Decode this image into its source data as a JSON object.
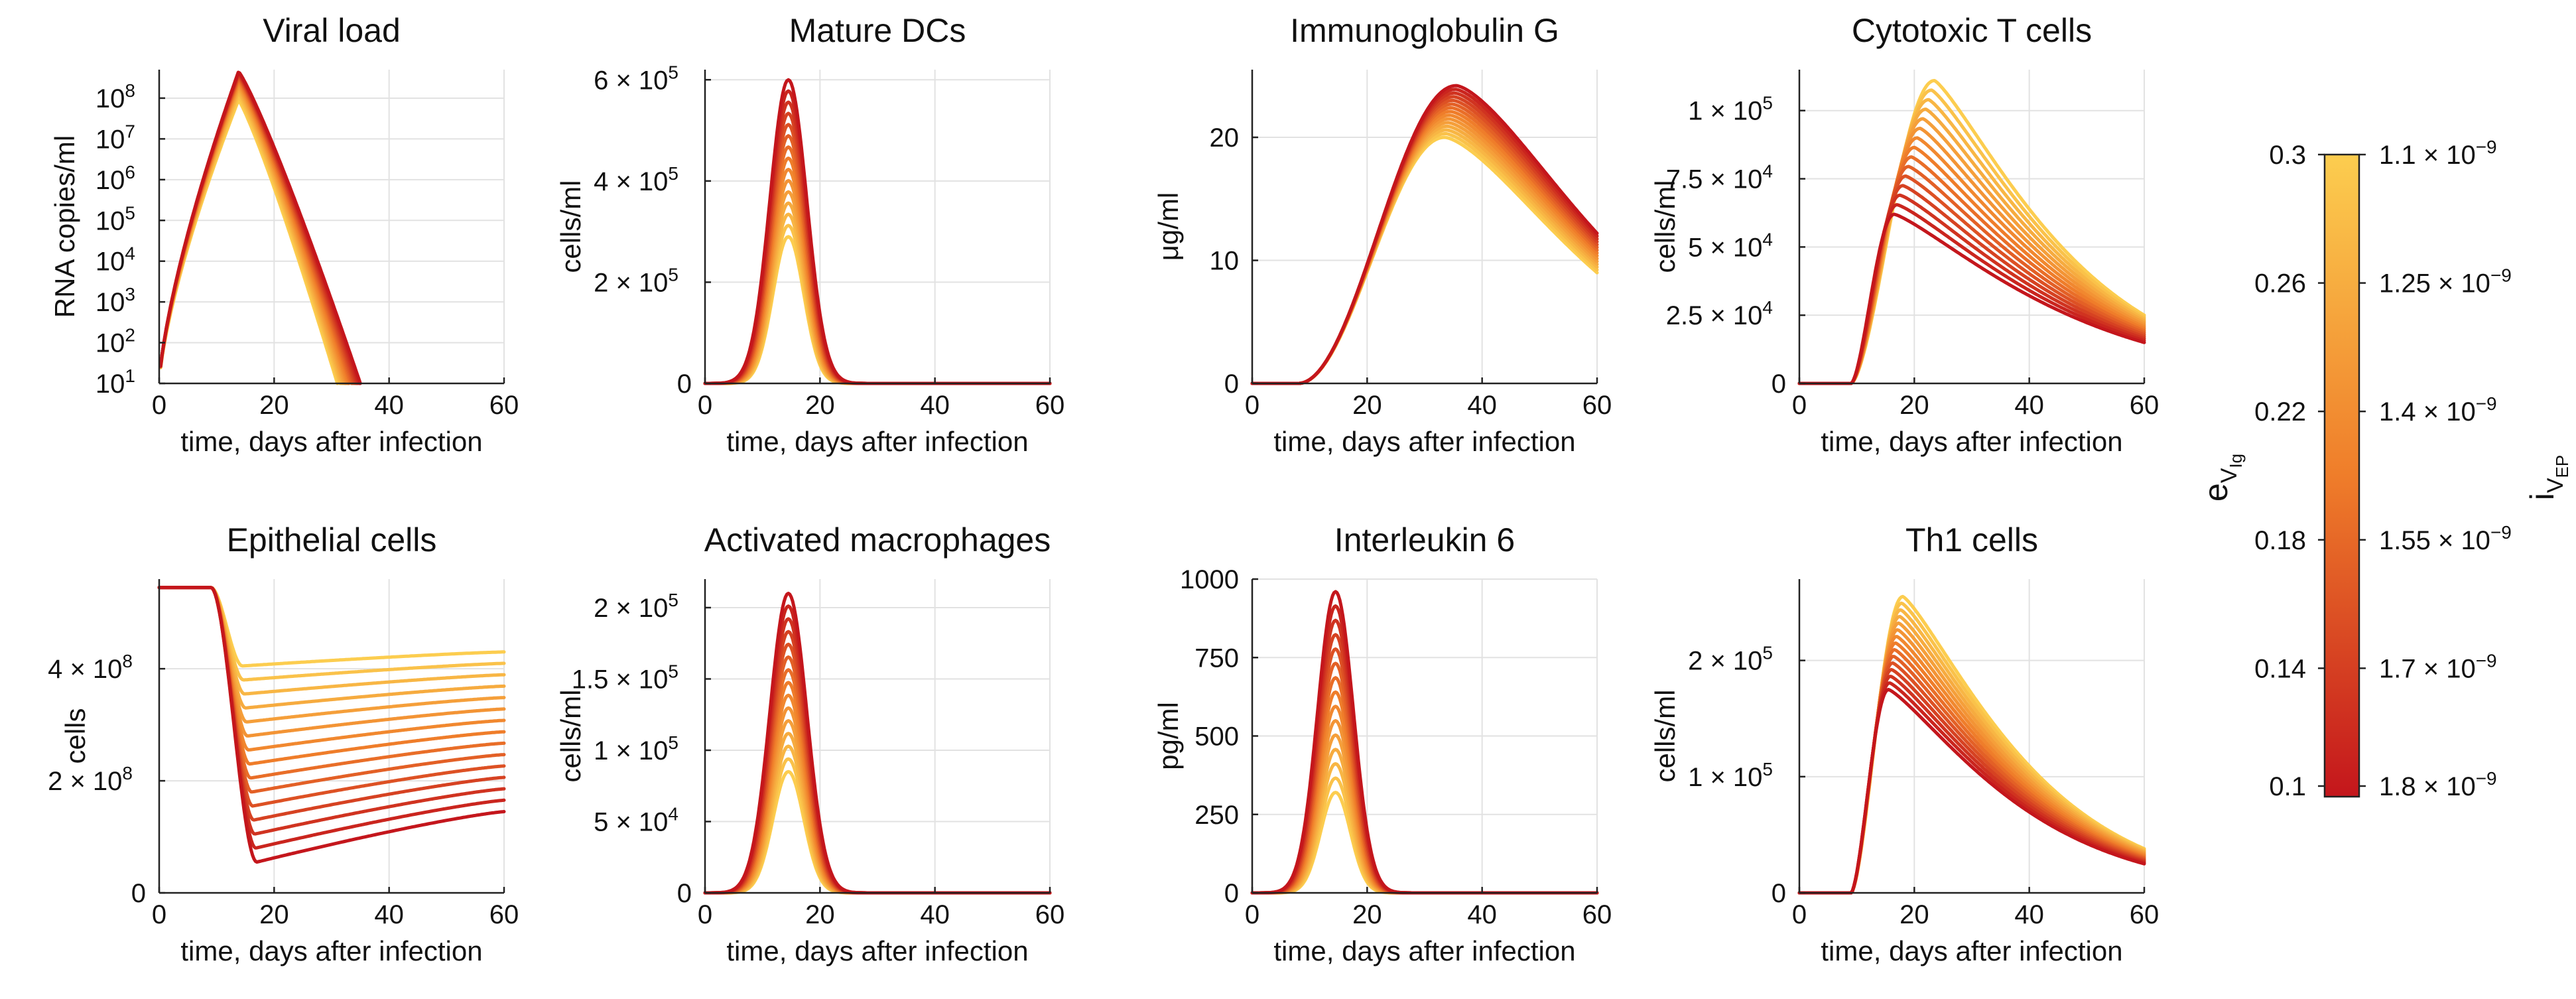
{
  "chart_data": {
    "type": "line",
    "n_curves": 15,
    "color_scale": {
      "low": "#c4161c",
      "mid": "#ef7d2a",
      "high": "#fccd4f"
    },
    "panels": [
      {
        "id": "viral-load",
        "title": "Viral load",
        "xlabel": "time, days after infection",
        "ylabel": "RNA copies/ml",
        "model": "viral",
        "scale": "log",
        "xlim": [
          0,
          60
        ],
        "ylim": [
          10,
          500000000
        ],
        "xticks": [
          0,
          20,
          40,
          60
        ],
        "xtick_labels": [
          "0",
          "20",
          "40",
          "60"
        ],
        "yticks": [
          10,
          100,
          1000,
          10000,
          100000,
          1000000,
          10000000,
          100000000
        ],
        "ytick_base": [
          "10",
          "10",
          "10",
          "10",
          "10",
          "10",
          "10",
          "10"
        ],
        "ytick_exp": [
          "1",
          "2",
          "3",
          "4",
          "5",
          "6",
          "7",
          "8"
        ],
        "peak_t": 13.8,
        "peak_values": [
          90000000,
          450000000
        ],
        "drop_day": [
          31,
          35
        ]
      },
      {
        "id": "mature-dcs",
        "title": "Mature DCs",
        "xlabel": "time, days after infection",
        "ylabel": "cells/ml",
        "model": "pulse",
        "scale": "linear",
        "xlim": [
          0,
          60
        ],
        "ylim": [
          0,
          620000
        ],
        "xticks": [
          0,
          20,
          40,
          60
        ],
        "xtick_labels": [
          "0",
          "20",
          "40",
          "60"
        ],
        "yticks": [
          0,
          200000,
          400000,
          600000
        ],
        "ytick_labels": [
          "0",
          "2 × 10",
          "4 × 10",
          "6 × 10"
        ],
        "ytick_exp": [
          "",
          "5",
          "5",
          "5"
        ],
        "peak_t": 14.5,
        "peak_values": [
          290000,
          600000
        ],
        "width": [
          2.7,
          3.2
        ]
      },
      {
        "id": "immunoglobulin-g",
        "title": "Immunoglobulin G",
        "xlabel": "time, days after infection",
        "ylabel": "μg/ml",
        "model": "igg",
        "scale": "linear",
        "xlim": [
          0,
          60
        ],
        "ylim": [
          0,
          25.5
        ],
        "xticks": [
          0,
          20,
          40,
          60
        ],
        "xtick_labels": [
          "0",
          "20",
          "40",
          "60"
        ],
        "yticks": [
          0,
          10,
          20
        ],
        "ytick_labels": [
          "0",
          "10",
          "20"
        ],
        "peak_t": [
          33.5,
          35.5
        ],
        "peak_values": [
          20,
          24.2
        ],
        "end_values": [
          9,
          12.2
        ]
      },
      {
        "id": "cytotoxic-t-cells",
        "title": "Cytotoxic T cells",
        "xlabel": "time, days after infection",
        "ylabel": "cells/ml",
        "model": "tcell",
        "scale": "linear",
        "xlim": [
          0,
          60
        ],
        "ylim": [
          0,
          115000
        ],
        "xticks": [
          0,
          20,
          40,
          60
        ],
        "xtick_labels": [
          "0",
          "20",
          "40",
          "60"
        ],
        "yticks": [
          0,
          25000,
          50000,
          75000,
          100000
        ],
        "ytick_labels": [
          "0",
          "2.5 × 10",
          "5 × 10",
          "7.5 × 10",
          "1 × 10"
        ],
        "ytick_exp": [
          "",
          "4",
          "4",
          "4",
          "5"
        ],
        "onset": 9,
        "peak_t": [
          16.5,
          23.5
        ],
        "peak_values": [
          62000,
          111000
        ],
        "end_values": [
          15000,
          25000
        ]
      },
      {
        "id": "epithelial-cells",
        "title": "Epithelial cells",
        "xlabel": "time, days after infection",
        "ylabel": "cells",
        "model": "epi",
        "scale": "linear",
        "xlim": [
          0,
          60
        ],
        "ylim": [
          0,
          560000000
        ],
        "xticks": [
          0,
          20,
          40,
          60
        ],
        "xtick_labels": [
          "0",
          "20",
          "40",
          "60"
        ],
        "yticks": [
          0,
          200000000,
          400000000
        ],
        "ytick_labels": [
          "0",
          "2 × 10",
          "4 × 10"
        ],
        "ytick_exp": [
          "",
          "8",
          "8"
        ],
        "start_value": 545000000,
        "min_t": [
          14.5,
          17
        ],
        "min_values": [
          55000000,
          405000000
        ],
        "end_values": [
          145000000,
          430000000
        ]
      },
      {
        "id": "activated-macrophages",
        "title": "Activated macrophages",
        "xlabel": "time, days after infection",
        "ylabel": "cells/ml",
        "model": "pulse",
        "scale": "linear",
        "xlim": [
          0,
          60
        ],
        "ylim": [
          0,
          220000
        ],
        "xticks": [
          0,
          20,
          40,
          60
        ],
        "xtick_labels": [
          "0",
          "20",
          "40",
          "60"
        ],
        "yticks": [
          0,
          50000,
          100000,
          150000,
          200000
        ],
        "ytick_labels": [
          "0",
          "5 × 10",
          "1 × 10",
          "1.5 × 10",
          "2 × 10"
        ],
        "ytick_exp": [
          "",
          "4",
          "5",
          "5",
          "5"
        ],
        "peak_t": 14.5,
        "peak_values": [
          85000,
          210000
        ],
        "width": [
          2.7,
          3.2
        ]
      },
      {
        "id": "interleukin-6",
        "title": "Interleukin 6",
        "xlabel": "time, days after infection",
        "ylabel": "pg/ml",
        "model": "pulse",
        "scale": "linear",
        "xlim": [
          0,
          60
        ],
        "ylim": [
          0,
          1000
        ],
        "xticks": [
          0,
          20,
          40,
          60
        ],
        "xtick_labels": [
          "0",
          "20",
          "40",
          "60"
        ],
        "yticks": [
          0,
          250,
          500,
          750,
          1000
        ],
        "ytick_labels": [
          "0",
          "250",
          "500",
          "750",
          "1000"
        ],
        "peak_t": 14.5,
        "peak_values": [
          320,
          960
        ],
        "width": [
          2.6,
          3.1
        ]
      },
      {
        "id": "th1-cells",
        "title": "Th1 cells",
        "xlabel": "time, days after infection",
        "ylabel": "cells/ml",
        "model": "tcell",
        "scale": "linear",
        "xlim": [
          0,
          60
        ],
        "ylim": [
          0,
          270000
        ],
        "xticks": [
          0,
          20,
          40,
          60
        ],
        "xtick_labels": [
          "0",
          "20",
          "40",
          "60"
        ],
        "yticks": [
          0,
          100000,
          200000
        ],
        "ytick_labels": [
          "0",
          "1 × 10",
          "2 × 10"
        ],
        "ytick_exp": [
          "",
          "5",
          "5"
        ],
        "onset": 9,
        "peak_t": [
          15.5,
          18
        ],
        "peak_values": [
          175000,
          255000
        ],
        "end_values": [
          25000,
          38000
        ]
      }
    ],
    "colorbar": {
      "left_label": "e",
      "left_label_sub": "V",
      "left_label_subsub": "Ig",
      "right_label": "i",
      "right_label_sub": "V",
      "right_label_subsub": "EP",
      "left_ticks": [
        "0.3",
        "0.26",
        "0.22",
        "0.18",
        "0.14",
        "0.1"
      ],
      "left_tick_fracs": [
        1.0,
        0.8,
        0.6,
        0.4,
        0.2,
        0.0
      ],
      "right_ticks_base": [
        "1.1 × 10",
        "1.25 × 10",
        "1.4 × 10",
        "1.55 × 10",
        "1.7 × 10",
        "1.8 × 10"
      ],
      "right_ticks_exp": [
        "−9",
        "−9",
        "−9",
        "−9",
        "−9",
        "−9"
      ],
      "right_tick_fracs": [
        1.0,
        0.8,
        0.6,
        0.4,
        0.2,
        0.0
      ]
    }
  }
}
